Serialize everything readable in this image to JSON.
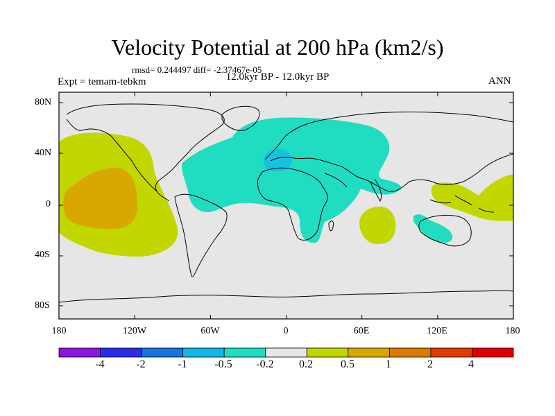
{
  "title": "Velocity Potential at 200 hPa (km2/s)",
  "stats": "rmsd= 0.244497 diff= -2.37467e-05",
  "experiment": "Expt = temam-tebkm",
  "period": "12.0kyr BP - 12.0kyr BP",
  "season": "ANN",
  "map": {
    "background_color": "#e6e6e6",
    "lat_ticks": [
      "80N",
      "40N",
      "0",
      "40S",
      "80S"
    ],
    "lon_ticks": [
      "180",
      "120W",
      "60W",
      "0",
      "60E",
      "120E",
      "180"
    ],
    "regions": [
      {
        "name": "central-pacific-positive",
        "level": "0.2 to 0.5",
        "color": "#c2d600"
      },
      {
        "name": "central-pacific-core",
        "level": "0.5 to 1",
        "color": "#d8a800"
      },
      {
        "name": "atlantic-africa-negative",
        "level": "-0.5 to -0.2",
        "color": "#20dcc0"
      },
      {
        "name": "mediterranean-core",
        "level": "-1 to -0.5",
        "color": "#16c2e0"
      },
      {
        "name": "indian-ocean-positive",
        "level": "0.2 to 0.5",
        "color": "#c2d600"
      },
      {
        "name": "australia-negative",
        "level": "-0.5 to -0.2",
        "color": "#20dcc0"
      },
      {
        "name": "west-pacific-positive",
        "level": "0.2 to 0.5",
        "color": "#c2d600"
      }
    ]
  },
  "colorbar": {
    "labels": [
      "-4",
      "-2",
      "-1",
      "-0.5",
      "-0.2",
      "0.2",
      "0.5",
      "1",
      "2",
      "4"
    ],
    "colors": [
      "#8a16e0",
      "#2c2ce8",
      "#1676e0",
      "#14b6e6",
      "#22dcc0",
      "#e6e6e6",
      "#c2d600",
      "#d8a800",
      "#dc7a00",
      "#e03c00",
      "#e00000"
    ]
  }
}
